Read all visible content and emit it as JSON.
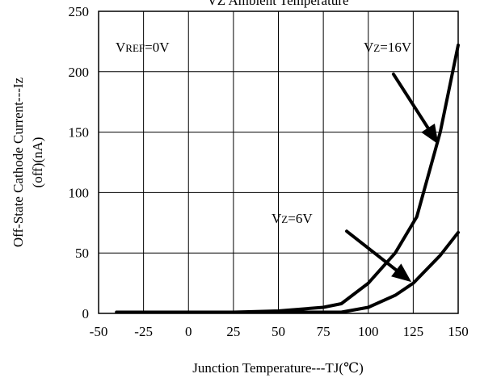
{
  "chart_data": {
    "type": "line",
    "title": "VZ Ambient Temperature",
    "xlabel": "Junction Temperature---TJ(℃)",
    "ylabel_lines": [
      "Off-State Cathode Current---Iz",
      "(off)(nA)"
    ],
    "xlim": [
      -50,
      150
    ],
    "ylim": [
      0,
      250
    ],
    "xticks": [
      -50,
      -25,
      0,
      25,
      50,
      75,
      100,
      125,
      150
    ],
    "yticks": [
      0,
      50,
      100,
      150,
      200,
      250
    ],
    "grid": true,
    "series": [
      {
        "name": "VZ=16V",
        "x": [
          -40,
          25,
          50,
          75,
          85,
          100,
          115,
          127,
          140,
          150
        ],
        "y": [
          1,
          1,
          2,
          5,
          8,
          25,
          50,
          80,
          150,
          222
        ]
      },
      {
        "name": "VZ=6V",
        "x": [
          -40,
          25,
          85,
          100,
          115,
          125,
          140,
          150
        ],
        "y": [
          1,
          1,
          1,
          5,
          15,
          25,
          48,
          67
        ]
      }
    ],
    "annotations": [
      {
        "main": "V",
        "sub": "REF",
        "tail": "=0V"
      },
      {
        "main": "V",
        "sub": "Z",
        "tail": "=16V",
        "arrow_to": [
          139,
          140
        ],
        "arrow_from": [
          114,
          198
        ]
      },
      {
        "main": "V",
        "sub": "Z",
        "tail": "=6V",
        "arrow_to": [
          124,
          26
        ],
        "arrow_from": [
          88,
          68
        ]
      }
    ]
  }
}
